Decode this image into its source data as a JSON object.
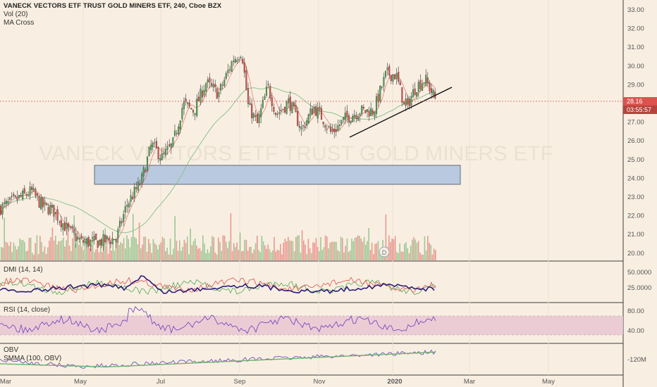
{
  "legend": {
    "title": "VANECK VECTORS ETF TRUST GOLD MINERS ETF, 240, Cboe BZX",
    "vol": "Vol (20)",
    "ma": "MA Cross"
  },
  "watermark": "VANECK VECTORS ETF TRUST GOLD MINERS ETF",
  "price_axis": [
    "33.00",
    "32.00",
    "31.00",
    "30.00",
    "29.00",
    "28.00",
    "27.00",
    "26.00",
    "25.00",
    "24.00",
    "23.00",
    "22.00",
    "21.00",
    "20.00"
  ],
  "last_price": "28.16",
  "countdown": "03:55:57",
  "dividend_marker": "D",
  "panels": {
    "dmi": {
      "label": "DMI (14, 14)",
      "ticks": [
        "50.0000",
        "25.0000"
      ]
    },
    "rsi": {
      "label": "RSI (14, close)",
      "ticks": [
        "80.00",
        "40.00"
      ]
    },
    "obv": {
      "label": "OBV",
      "label2": "SMMA (100, OBV)",
      "ticks": [
        "-120M"
      ]
    }
  },
  "time_axis": [
    "Mar",
    "May",
    "Jul",
    "Sep",
    "Nov",
    "2020",
    "Mar",
    "May"
  ],
  "colors": {
    "up": "#53a653",
    "down": "#e0504b",
    "zone_fill": "#b3c6e0",
    "ma_fast": "#e0504b",
    "ma_slow": "#8fc18f",
    "dmi_adx": "#2b1b7a",
    "dmi_plus": "#53a653",
    "dmi_minus": "#e0504b",
    "rsi_line": "#7b4bbf",
    "rsi_band": "#e9c6d2",
    "obv_line": "#7b4bbf",
    "obv_smma": "#6ab36a",
    "background": "#f8efe2"
  }
}
